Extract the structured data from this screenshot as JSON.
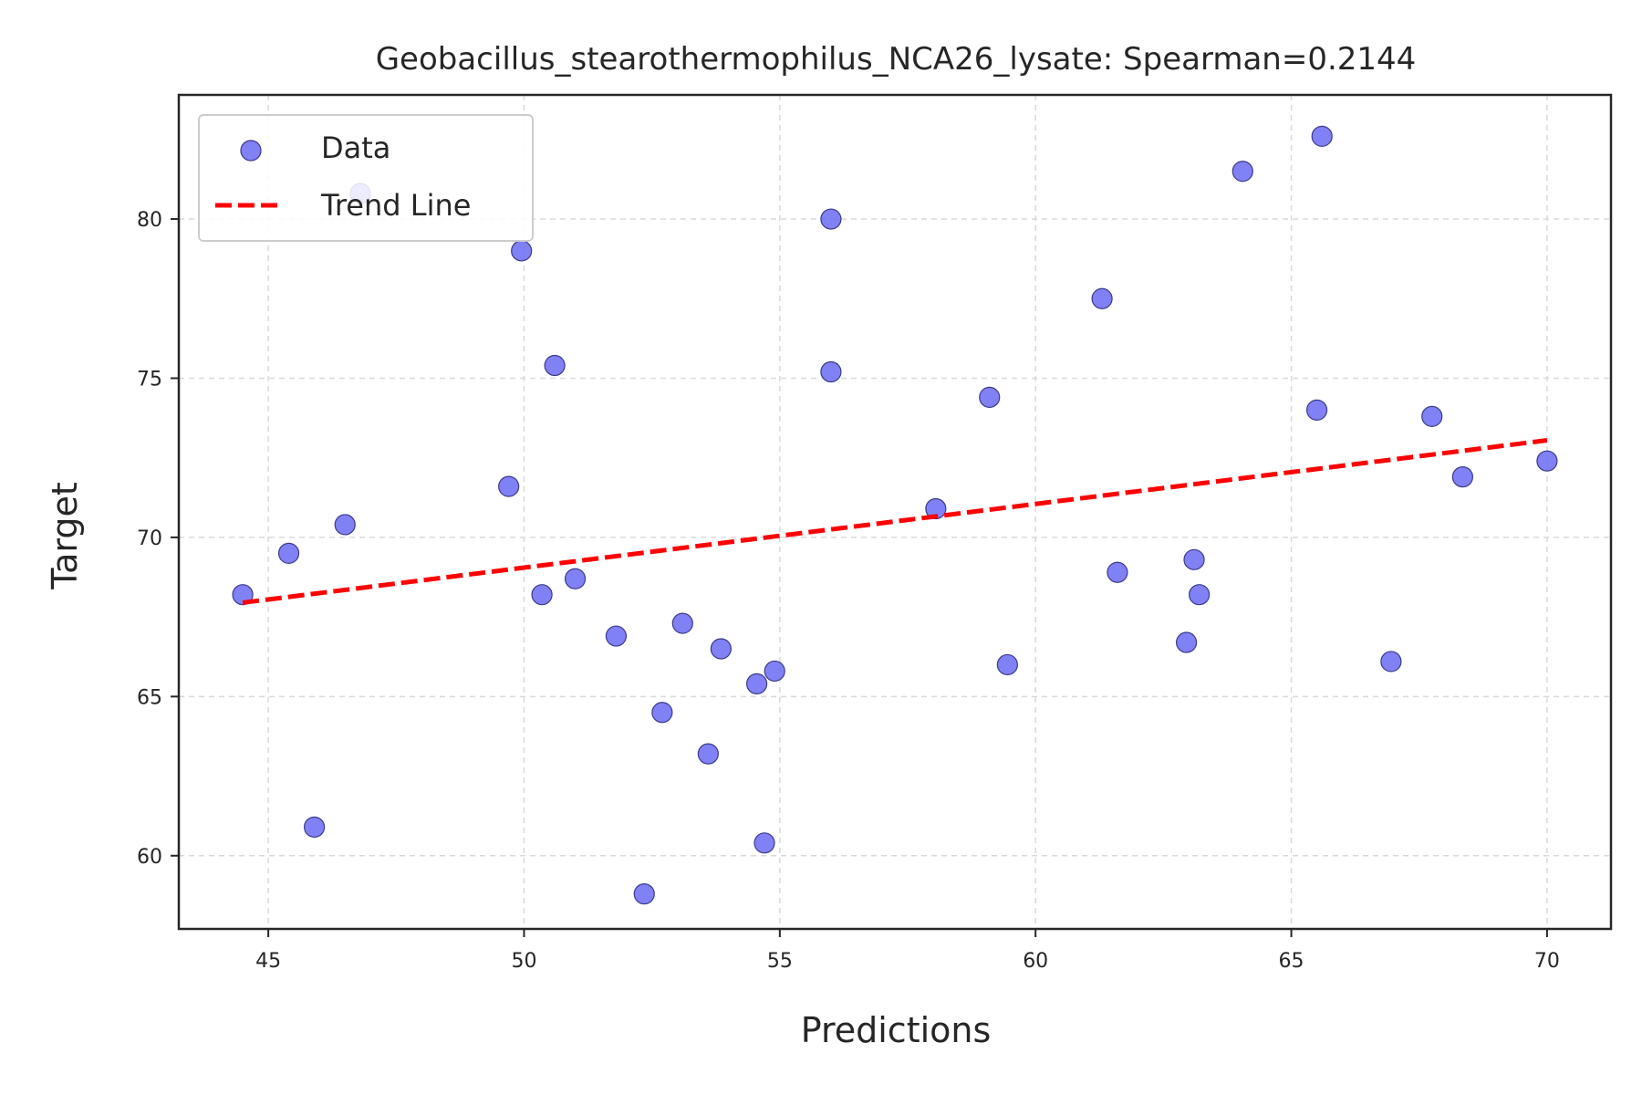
{
  "chart_data": {
    "type": "scatter",
    "title": "Geobacillus_stearothermophilus_NCA26_lysate: Spearman=0.2144",
    "xlabel": "Predictions",
    "ylabel": "Target",
    "xlim": [
      43.25,
      71.25
    ],
    "ylim": [
      57.7,
      83.9
    ],
    "xticks": [
      45,
      50,
      55,
      60,
      65,
      70
    ],
    "yticks": [
      60,
      65,
      70,
      75,
      80
    ],
    "grid": true,
    "legend_position": "top-left",
    "series": [
      {
        "name": "Data",
        "color": "#6b6bf5",
        "points": [
          [
            44.5,
            68.2
          ],
          [
            45.4,
            69.5
          ],
          [
            45.9,
            60.9
          ],
          [
            46.5,
            70.4
          ],
          [
            46.8,
            80.8
          ],
          [
            49.7,
            71.6
          ],
          [
            49.95,
            79.0
          ],
          [
            50.35,
            68.2
          ],
          [
            50.6,
            75.4
          ],
          [
            51.0,
            68.7
          ],
          [
            51.8,
            66.9
          ],
          [
            52.35,
            58.8
          ],
          [
            52.7,
            64.5
          ],
          [
            53.1,
            67.3
          ],
          [
            53.6,
            63.2
          ],
          [
            53.85,
            66.5
          ],
          [
            54.55,
            65.4
          ],
          [
            54.7,
            60.4
          ],
          [
            54.9,
            65.8
          ],
          [
            56.0,
            80.0
          ],
          [
            56.0,
            75.2
          ],
          [
            58.05,
            70.9
          ],
          [
            59.1,
            74.4
          ],
          [
            59.45,
            66.0
          ],
          [
            61.3,
            77.5
          ],
          [
            61.6,
            68.9
          ],
          [
            62.95,
            66.7
          ],
          [
            63.1,
            69.3
          ],
          [
            63.2,
            68.2
          ],
          [
            64.05,
            81.5
          ],
          [
            65.5,
            74.0
          ],
          [
            65.6,
            82.6
          ],
          [
            66.95,
            66.1
          ],
          [
            67.75,
            73.8
          ],
          [
            68.35,
            71.9
          ],
          [
            70.0,
            72.4
          ]
        ]
      },
      {
        "name": "Trend Line",
        "color": "#ff0000",
        "line": [
          [
            44.5,
            67.95
          ],
          [
            70.0,
            73.05
          ]
        ]
      }
    ]
  }
}
